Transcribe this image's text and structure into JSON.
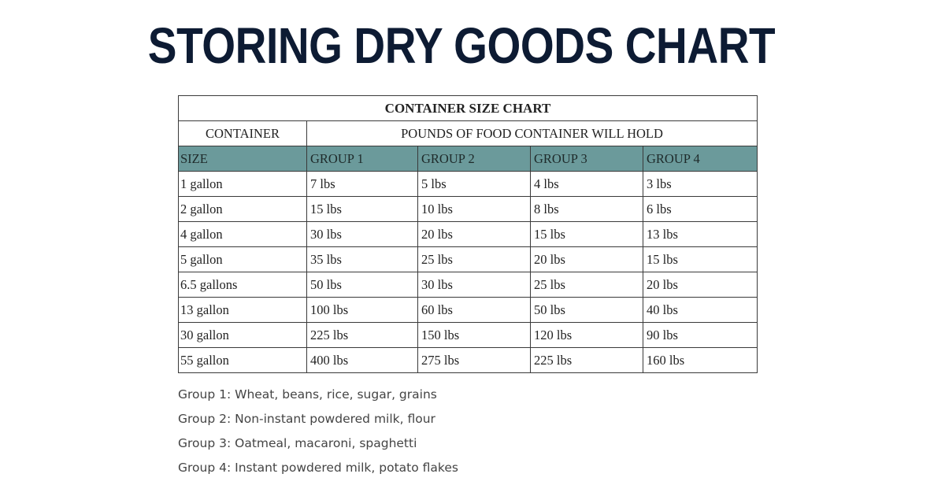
{
  "page_title": "STORING DRY GOODS CHART",
  "table": {
    "caption": "CONTAINER SIZE CHART",
    "header_container": "CONTAINER",
    "header_pounds": "POUNDS OF FOOD CONTAINER WILL HOLD",
    "band_color": "#6b9a9b",
    "columns": [
      "SIZE",
      "GROUP 1",
      "GROUP 2",
      "GROUP 3",
      "GROUP 4"
    ],
    "rows": [
      [
        "1 gallon",
        "7 lbs",
        "5 lbs",
        "4 lbs",
        "3 lbs"
      ],
      [
        "2 gallon",
        "15 lbs",
        "10 lbs",
        "8 lbs",
        "6 lbs"
      ],
      [
        "4 gallon",
        "30 lbs",
        "20 lbs",
        "15 lbs",
        "13 lbs"
      ],
      [
        "5 gallon",
        "35 lbs",
        "25 lbs",
        "20 lbs",
        "15 lbs"
      ],
      [
        "6.5 gallons",
        "50 lbs",
        "30 lbs",
        "25 lbs",
        "20 lbs"
      ],
      [
        "13 gallon",
        "100 lbs",
        "60 lbs",
        "50 lbs",
        "40 lbs"
      ],
      [
        "30 gallon",
        "225 lbs",
        "150 lbs",
        "120 lbs",
        "90 lbs"
      ],
      [
        "55 gallon",
        "400 lbs",
        "275 lbs",
        "225 lbs",
        "160 lbs"
      ]
    ]
  },
  "legend": [
    "Group 1: Wheat, beans, rice, sugar, grains",
    "Group 2: Non-instant powdered milk, flour",
    "Group 3: Oatmeal, macaroni, spaghetti",
    "Group 4: Instant powdered milk, potato flakes"
  ]
}
